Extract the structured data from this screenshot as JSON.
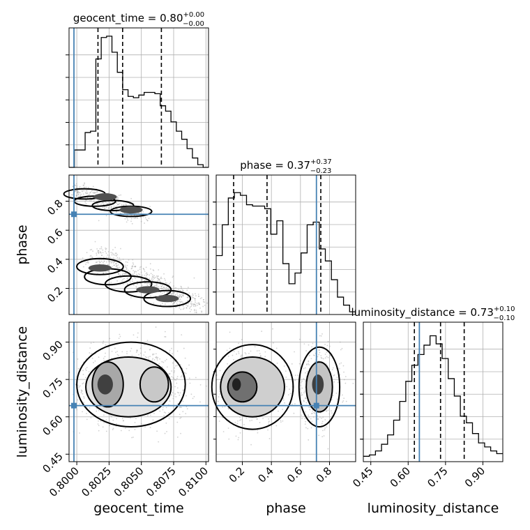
{
  "chart_data": {
    "type": "corner",
    "parameters": [
      "geocent_time",
      "phase",
      "luminosity_distance"
    ],
    "axis_labels": {
      "geocent_time": "geocent_time",
      "phase": "phase",
      "luminosity_distance": "luminosity_distance"
    },
    "titles": [
      {
        "param": "geocent_time",
        "prefix": "geocent_time = ",
        "value": "0.80",
        "plus": "+0.00",
        "minus": "−0.00"
      },
      {
        "param": "phase",
        "prefix": "phase = ",
        "value": "0.37",
        "plus": "+0.37",
        "minus": "−0.23"
      },
      {
        "param": "luminosity_distance",
        "prefix": "luminosity_distance = ",
        "value": "0.73",
        "plus": "+0.10",
        "minus": "−0.10"
      }
    ],
    "ranges": {
      "geocent_time": [
        0.7994,
        0.8102
      ],
      "phase": [
        0.02,
        0.98
      ],
      "luminosity_distance": [
        0.42,
        0.98
      ]
    },
    "ticks": {
      "geocent_time": [
        "0.8000",
        "0.8025",
        "0.8050",
        "0.8075",
        "0.8100"
      ],
      "phase": [
        "0.2",
        "0.4",
        "0.6",
        "0.8"
      ],
      "luminosity_distance": [
        "0.45",
        "0.60",
        "0.75",
        "0.90"
      ]
    },
    "truths": {
      "geocent_time": 0.79978,
      "phase": 0.71,
      "luminosity_distance": 0.645
    },
    "quantiles": {
      "geocent_time": [
        0.80164,
        0.80355,
        0.80655
      ],
      "phase": [
        0.14,
        0.37,
        0.74
      ],
      "luminosity_distance": [
        0.625,
        0.73,
        0.825
      ]
    },
    "histograms": {
      "geocent_time": [
        0.0,
        0.13,
        0.13,
        0.26,
        0.27,
        0.81,
        0.97,
        0.98,
        0.86,
        0.71,
        0.58,
        0.53,
        0.52,
        0.54,
        0.56,
        0.56,
        0.55,
        0.46,
        0.42,
        0.34,
        0.27,
        0.21,
        0.14,
        0.07,
        0.02,
        0.0
      ],
      "phase": [
        0.44,
        0.67,
        0.87,
        0.91,
        0.89,
        0.82,
        0.81,
        0.81,
        0.79,
        0.6,
        0.7,
        0.38,
        0.23,
        0.31,
        0.46,
        0.67,
        0.69,
        0.49,
        0.4,
        0.26,
        0.13,
        0.07,
        0.02
      ],
      "luminosity_distance": [
        0.04,
        0.05,
        0.08,
        0.13,
        0.2,
        0.31,
        0.45,
        0.6,
        0.72,
        0.8,
        0.87,
        0.94,
        0.88,
        0.77,
        0.62,
        0.49,
        0.34,
        0.29,
        0.21,
        0.14,
        0.11,
        0.08,
        0.06
      ]
    },
    "grid": true,
    "colors": {
      "truth": "#4682b4",
      "hist": "#000000",
      "quantile": "#000000",
      "density": "#303030",
      "grid": "#b0b0b0"
    }
  }
}
